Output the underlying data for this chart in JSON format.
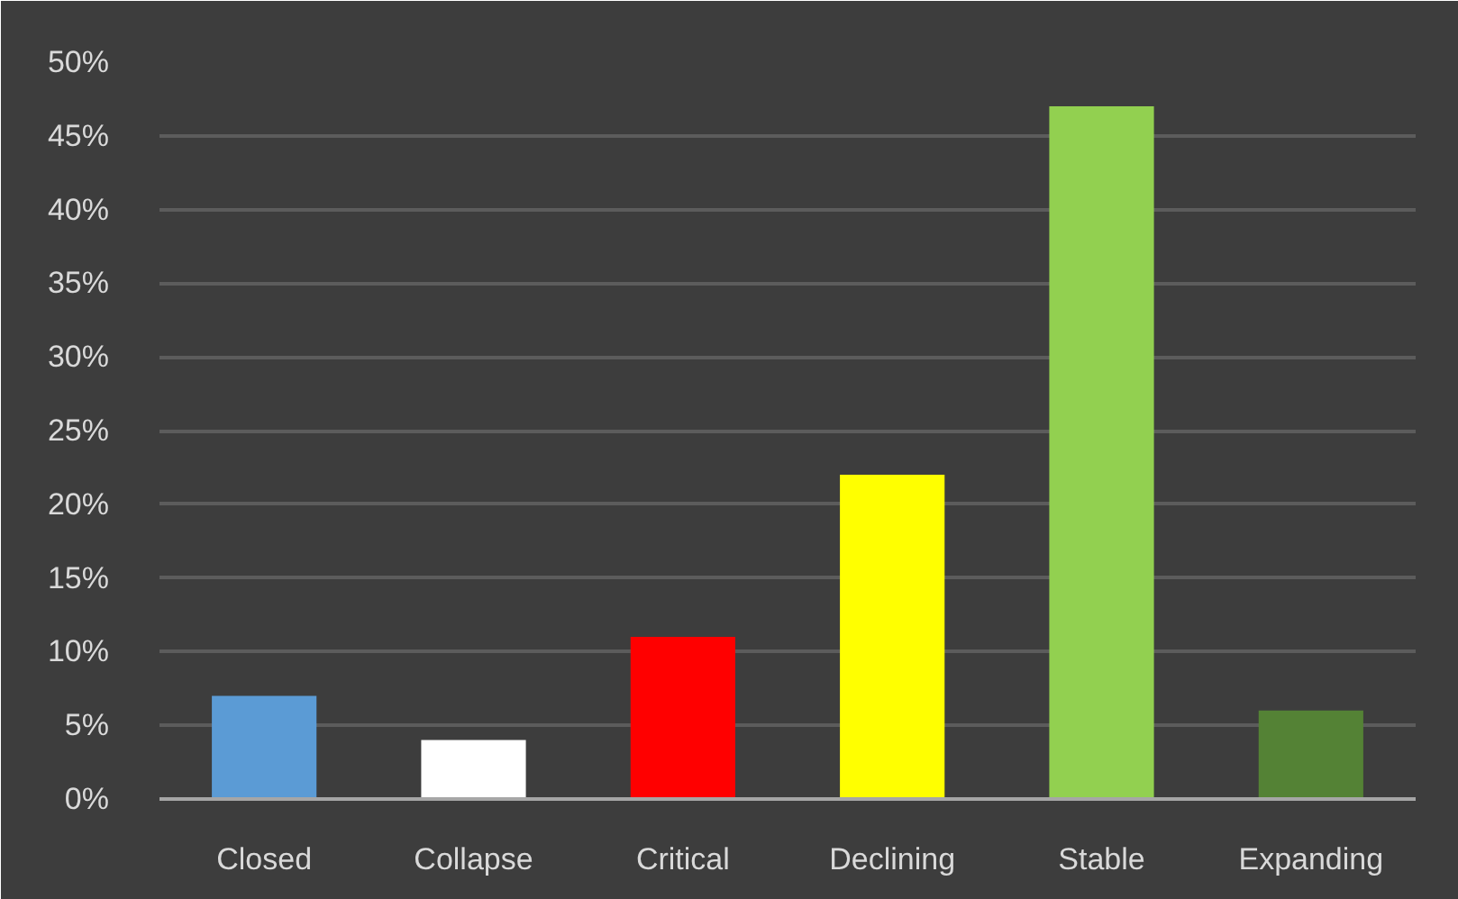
{
  "chart_data": {
    "type": "bar",
    "categories": [
      "Closed",
      "Collapse",
      "Critical",
      "Declining",
      "Stable",
      "Expanding"
    ],
    "values": [
      7,
      4,
      11,
      22,
      47,
      6
    ],
    "colors": [
      "#5b9bd5",
      "#ffffff",
      "#ff0000",
      "#ffff00",
      "#92d050",
      "#548235"
    ],
    "ylim": [
      0,
      50
    ],
    "yticks": [
      {
        "value": 0,
        "label": "0%"
      },
      {
        "value": 5,
        "label": "5%"
      },
      {
        "value": 10,
        "label": "10%"
      },
      {
        "value": 15,
        "label": "15%"
      },
      {
        "value": 20,
        "label": "20%"
      },
      {
        "value": 25,
        "label": "25%"
      },
      {
        "value": 30,
        "label": "30%"
      },
      {
        "value": 35,
        "label": "35%"
      },
      {
        "value": 40,
        "label": "40%"
      },
      {
        "value": 45,
        "label": "45%"
      },
      {
        "value": 50,
        "label": "50%"
      }
    ],
    "grid": "y"
  }
}
